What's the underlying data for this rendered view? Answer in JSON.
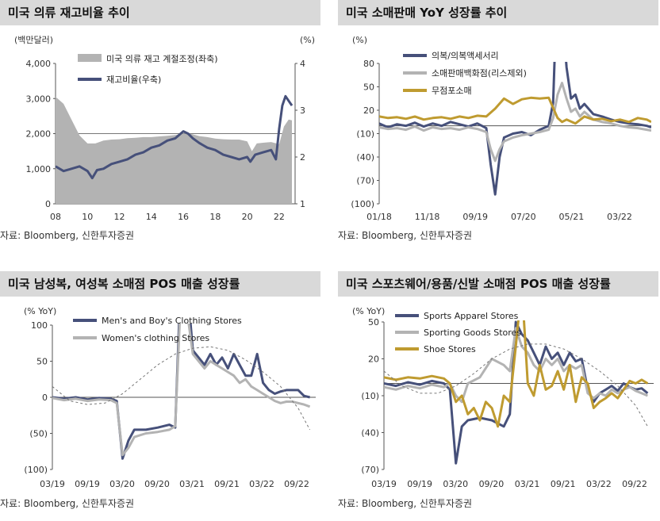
{
  "charts": [
    {
      "title": "미국 의류 재고비율 추이",
      "source": "자료: Bloomberg, 신한투자증권",
      "chart_data": {
        "type": "area",
        "left_unit": "(백만달러)",
        "right_unit": "(%)",
        "x_ticks": [
          "08",
          "10",
          "12",
          "14",
          "16",
          "18",
          "20",
          "22"
        ],
        "left_ticks": [
          "4,000",
          "3,000",
          "2,000",
          "1,000",
          "0"
        ],
        "right_ticks": [
          "4",
          "3",
          "2",
          "1"
        ],
        "ylim_left": [
          0,
          4000
        ],
        "ylim_right": [
          1,
          4
        ],
        "xlim": [
          2008,
          2023
        ],
        "hline_left": 2000,
        "series": [
          {
            "name": "미국 의류 재고 계절조정(좌축)",
            "kind": "area",
            "axis": "left",
            "color": "#b3b3b3",
            "x": [
              2008,
              2008.5,
              2009,
              2009.5,
              2010,
              2010.5,
              2011,
              2011.5,
              2012,
              2012.5,
              2013,
              2013.5,
              2014,
              2014.5,
              2015,
              2015.5,
              2016,
              2016.5,
              2017,
              2017.5,
              2018,
              2018.5,
              2019,
              2019.5,
              2020,
              2020.3,
              2020.6,
              2021,
              2021.5,
              2022,
              2022.3,
              2022.6,
              2022.8
            ],
            "values": [
              3050,
              2850,
              2400,
              1950,
              1720,
              1720,
              1800,
              1830,
              1840,
              1870,
              1880,
              1900,
              1900,
              1920,
              1940,
              1960,
              2000,
              1990,
              1930,
              1900,
              1860,
              1840,
              1830,
              1830,
              1780,
              1500,
              1720,
              1740,
              1760,
              1700,
              2200,
              2400,
              2380
            ]
          },
          {
            "name": "재고비율(우축)",
            "kind": "line",
            "axis": "right",
            "color": "#46507a",
            "x": [
              2008,
              2008.5,
              2009,
              2009.5,
              2010,
              2010.3,
              2010.6,
              2011,
              2011.5,
              2012,
              2012.5,
              2013,
              2013.5,
              2014,
              2014.5,
              2015,
              2015.5,
              2016,
              2016.3,
              2016.6,
              2017,
              2017.5,
              2018,
              2018.5,
              2019,
              2019.5,
              2020,
              2020.2,
              2020.5,
              2021,
              2021.5,
              2021.8,
              2022,
              2022.2,
              2022.4,
              2022.6,
              2022.8
            ],
            "values": [
              1.8,
              1.7,
              1.75,
              1.8,
              1.7,
              1.55,
              1.72,
              1.75,
              1.85,
              1.9,
              1.95,
              2.05,
              2.1,
              2.2,
              2.25,
              2.35,
              2.4,
              2.55,
              2.5,
              2.4,
              2.3,
              2.2,
              2.15,
              2.05,
              2.0,
              1.95,
              2.0,
              1.9,
              2.05,
              2.1,
              2.15,
              1.95,
              2.6,
              3.1,
              3.3,
              3.2,
              3.1
            ]
          }
        ]
      }
    },
    {
      "title": "미국 소매판매 YoY 성장률 추이",
      "source": "자료: Bloomberg, 신한투자증권",
      "chart_data": {
        "type": "line",
        "unit": "(%)",
        "x_ticks": [
          "01/18",
          "11/18",
          "09/19",
          "07/20",
          "05/21",
          "03/22"
        ],
        "y_ticks": [
          "80",
          "50",
          "20",
          "(10)",
          "(40)",
          "(70)",
          "(100)"
        ],
        "ylim": [
          -100,
          80
        ],
        "xlim": [
          0,
          61
        ],
        "series": [
          {
            "name": "의복/의복액세서리",
            "color": "#46507a",
            "x": [
              0,
              2,
              4,
              6,
              8,
              10,
              12,
              14,
              16,
              18,
              20,
              22,
              24,
              25,
              26,
              27,
              28,
              30,
              32,
              34,
              36,
              38,
              39,
              40,
              41,
              42,
              43,
              44,
              45,
              46,
              48,
              50,
              52,
              54,
              56,
              58,
              60,
              61
            ],
            "values": [
              3,
              -2,
              2,
              0,
              4,
              -1,
              3,
              0,
              5,
              2,
              -1,
              3,
              -3,
              -50,
              -88,
              -40,
              -15,
              -10,
              -8,
              -12,
              -5,
              0,
              30,
              200,
              150,
              75,
              35,
              40,
              22,
              28,
              15,
              12,
              8,
              5,
              3,
              2,
              0,
              -2
            ]
          },
          {
            "name": "소매판매백화점(리스제외)",
            "color": "#b3b3b3",
            "x": [
              0,
              2,
              4,
              6,
              8,
              10,
              12,
              14,
              16,
              18,
              20,
              22,
              24,
              25,
              26,
              27,
              28,
              30,
              32,
              34,
              36,
              38,
              39,
              40,
              41,
              42,
              43,
              44,
              45,
              46,
              48,
              50,
              52,
              54,
              56,
              58,
              60,
              61
            ],
            "values": [
              -2,
              -4,
              -3,
              -5,
              -1,
              -6,
              -2,
              -4,
              -3,
              -5,
              -2,
              -4,
              -8,
              -30,
              -45,
              -30,
              -20,
              -15,
              -12,
              -10,
              -8,
              -5,
              10,
              40,
              55,
              35,
              18,
              22,
              12,
              18,
              8,
              5,
              3,
              0,
              -2,
              -3,
              -5,
              -6
            ]
          },
          {
            "name": "무점포소매",
            "color": "#bf9b30",
            "x": [
              0,
              2,
              4,
              6,
              8,
              10,
              12,
              14,
              16,
              18,
              20,
              22,
              24,
              26,
              28,
              30,
              32,
              34,
              36,
              38,
              40,
              41,
              42,
              44,
              46,
              48,
              50,
              52,
              54,
              56,
              58,
              60,
              61
            ],
            "values": [
              12,
              10,
              11,
              9,
              12,
              8,
              10,
              11,
              9,
              12,
              10,
              13,
              12,
              22,
              35,
              28,
              34,
              36,
              35,
              36,
              10,
              5,
              8,
              3,
              12,
              8,
              9,
              6,
              8,
              5,
              10,
              8,
              5
            ]
          }
        ]
      }
    },
    {
      "title": "미국 남성복, 여성복 소매점 POS 매출 성장률",
      "source": "자료: Bloomberg, 신한투자증권",
      "chart_data": {
        "type": "line",
        "unit": "(% YoY)",
        "x_ticks": [
          "03/19",
          "09/19",
          "03/20",
          "09/20",
          "03/21",
          "09/21",
          "03/22",
          "09/22"
        ],
        "y_ticks": [
          "100",
          "50",
          "0",
          "(50)",
          "(100)"
        ],
        "ylim": [
          -100,
          100
        ],
        "xlim": [
          0,
          45
        ],
        "series": [
          {
            "name": "Men's and Boy's Clothing Stores",
            "color": "#46507a",
            "x": [
              0,
              2,
              4,
              6,
              8,
              10,
              11,
              12,
              13,
              14,
              16,
              18,
              20,
              21,
              22,
              23,
              24,
              26,
              27,
              28,
              29,
              30,
              31,
              32,
              33,
              34,
              35,
              36,
              37,
              38,
              39,
              40,
              41,
              42,
              43,
              44
            ],
            "values": [
              0,
              -2,
              0,
              -3,
              -1,
              -2,
              -5,
              -85,
              -60,
              -45,
              -45,
              -42,
              -38,
              -42,
              180,
              160,
              65,
              45,
              60,
              45,
              55,
              40,
              60,
              45,
              30,
              30,
              60,
              20,
              10,
              5,
              8,
              10,
              10,
              10,
              2,
              0
            ]
          },
          {
            "name": "Women's clothing Stores",
            "color": "#b3b3b3",
            "x": [
              0,
              2,
              4,
              6,
              8,
              10,
              11,
              12,
              13,
              14,
              16,
              18,
              20,
              21,
              22,
              23,
              24,
              26,
              27,
              28,
              29,
              30,
              31,
              32,
              33,
              34,
              35,
              36,
              37,
              38,
              39,
              40,
              41,
              42,
              43,
              44
            ],
            "values": [
              -1,
              -4,
              -2,
              -5,
              -3,
              -4,
              -8,
              -80,
              -70,
              -55,
              -50,
              -48,
              -45,
              -40,
              150,
              120,
              60,
              40,
              50,
              45,
              40,
              35,
              30,
              20,
              25,
              15,
              10,
              5,
              0,
              -5,
              -8,
              -6,
              -6,
              -8,
              -10,
              -13
            ]
          },
          {
            "name": "trend",
            "color": "#777777",
            "dashed": true,
            "x": [
              0,
              3,
              6,
              9,
              12,
              15,
              18,
              21,
              24,
              27,
              30,
              33,
              36,
              39,
              42,
              44
            ],
            "values": [
              15,
              -5,
              -10,
              -8,
              5,
              25,
              45,
              60,
              68,
              70,
              65,
              52,
              35,
              15,
              -15,
              -45
            ]
          }
        ]
      }
    },
    {
      "title": "미국 스포츠웨어/용품/신발 소매점 POS 매출 성장률",
      "source": "자료: Bloomberg, 신한투자증권",
      "chart_data": {
        "type": "line",
        "unit": "(% YoY)",
        "x_ticks": [
          "03/19",
          "09/19",
          "03/20",
          "09/20",
          "03/21",
          "09/21",
          "03/22",
          "09/22"
        ],
        "y_ticks": [
          "50",
          "20",
          "(10)",
          "(40)",
          "(70)"
        ],
        "ylim": [
          -70,
          50
        ],
        "xlim": [
          0,
          45
        ],
        "series": [
          {
            "name": "Sports Apparel Stores",
            "color": "#46507a",
            "x": [
              0,
              2,
              4,
              6,
              8,
              10,
              11,
              12,
              13,
              14,
              16,
              18,
              20,
              21,
              22,
              23,
              24,
              25,
              26,
              27,
              28,
              29,
              30,
              31,
              32,
              33,
              34,
              35,
              36,
              37,
              38,
              39,
              40,
              41,
              42,
              43,
              44
            ],
            "values": [
              0,
              -2,
              1,
              -1,
              2,
              0,
              -5,
              -65,
              -35,
              -30,
              -28,
              -30,
              -35,
              -25,
              50,
              40,
              35,
              25,
              15,
              30,
              20,
              25,
              15,
              25,
              18,
              20,
              -5,
              -15,
              -8,
              -5,
              -2,
              -6,
              0,
              -3,
              -5,
              -4,
              -8
            ]
          },
          {
            "name": "Sporting Goods Stores",
            "color": "#b3b3b3",
            "x": [
              0,
              2,
              4,
              6,
              8,
              10,
              11,
              12,
              13,
              14,
              16,
              18,
              20,
              21,
              22,
              23,
              24,
              25,
              26,
              27,
              28,
              29,
              30,
              31,
              32,
              33,
              34,
              35,
              36,
              37,
              38,
              39,
              40,
              41,
              42,
              43,
              44
            ],
            "values": [
              -3,
              -5,
              -2,
              -4,
              -1,
              -3,
              0,
              -10,
              -15,
              0,
              5,
              20,
              15,
              10,
              45,
              30,
              25,
              15,
              10,
              20,
              15,
              20,
              10,
              15,
              12,
              15,
              -8,
              -12,
              -8,
              -10,
              -5,
              -8,
              -5,
              -3,
              -6,
              -8,
              -10
            ]
          },
          {
            "name": "Shoe Stores",
            "color": "#bf9b30",
            "x": [
              0,
              2,
              4,
              6,
              8,
              10,
              11,
              12,
              13,
              14,
              15,
              16,
              17,
              18,
              19,
              20,
              21,
              22,
              23,
              24,
              25,
              26,
              27,
              28,
              29,
              30,
              31,
              32,
              33,
              34,
              35,
              36,
              37,
              38,
              39,
              40,
              41,
              42,
              43,
              44
            ],
            "values": [
              5,
              3,
              5,
              4,
              6,
              4,
              0,
              -15,
              -10,
              -25,
              -20,
              -30,
              -15,
              -20,
              -35,
              -10,
              -15,
              30,
              80,
              0,
              -10,
              15,
              -5,
              -2,
              10,
              -5,
              15,
              -15,
              5,
              0,
              -20,
              -15,
              -12,
              -8,
              -12,
              -5,
              2,
              0,
              3,
              0
            ]
          },
          {
            "name": "trend",
            "color": "#777777",
            "dashed": true,
            "x": [
              0,
              3,
              6,
              9,
              12,
              15,
              18,
              21,
              24,
              27,
              30,
              33,
              36,
              39,
              42,
              44
            ],
            "values": [
              10,
              -2,
              -8,
              -8,
              -2,
              8,
              20,
              28,
              32,
              32,
              28,
              20,
              10,
              -2,
              -18,
              -35
            ]
          }
        ]
      }
    }
  ]
}
